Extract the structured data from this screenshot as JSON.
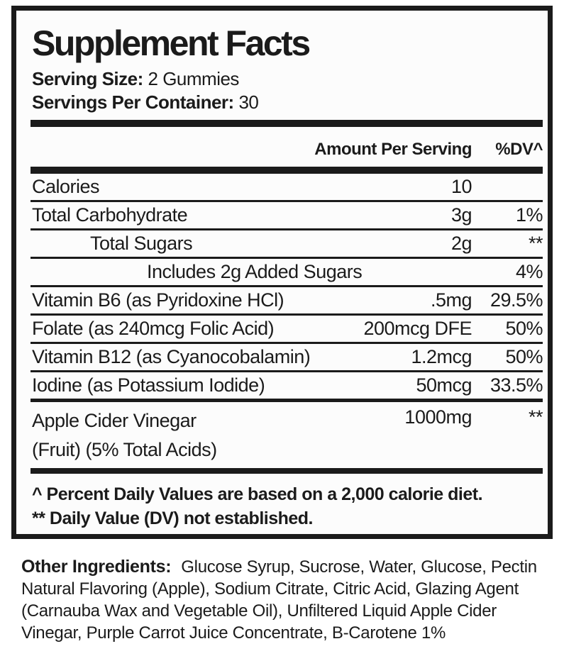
{
  "panel": {
    "title": "Supplement Facts",
    "serving_size_label": "Serving Size:",
    "serving_size_value": "2 Gummies",
    "servings_per_container_label": "Servings Per Container:",
    "servings_per_container_value": "30",
    "header": {
      "amount": "Amount Per Serving",
      "dv": "%DV^"
    },
    "rows": [
      {
        "name": "Calories",
        "amount": "10",
        "dv": ""
      },
      {
        "name": "Total Carbohydrate",
        "amount": "3g",
        "dv": "1%"
      },
      {
        "name": "Total Sugars",
        "amount": "2g",
        "dv": "**"
      },
      {
        "name": "Includes 2g Added Sugars",
        "amount": "",
        "dv": "4%"
      },
      {
        "name": "Vitamin B6 (as Pyridoxine HCl)",
        "amount": ".5mg",
        "dv": "29.5%"
      },
      {
        "name": "Folate (as 240mcg Folic Acid)",
        "amount": "200mcg DFE",
        "dv": "50%"
      },
      {
        "name": "Vitamin B12 (as Cyanocobalamin)",
        "amount": "1.2mcg",
        "dv": "50%"
      },
      {
        "name": "Iodine (as Potassium Iodide)",
        "amount": "50mcg",
        "dv": "33.5%"
      },
      {
        "name": "Apple Cider Vinegar",
        "name_line2": "(Fruit) (5% Total Acids)",
        "amount": "1000mg",
        "dv": "**"
      }
    ],
    "footnotes": [
      "^ Percent Daily Values are based on a 2,000 calorie diet.",
      "** Daily Value (DV) not established."
    ]
  },
  "other_ingredients": {
    "label": "Other Ingredients:",
    "text": "Glucose Syrup, Sucrose, Water, Glucose, Pectin Natural Flavoring (Apple), Sodium Citrate, Citric Acid, Glazing Agent (Carnauba Wax and Vegetable Oil), Unfiltered Liquid Apple Cider Vinegar, Purple Carrot Juice Concentrate, B-Carotene 1%"
  },
  "colors": {
    "text": "#1b1b1b",
    "panel_background": "#fcfcfc",
    "page_background": "#ffffff",
    "rule": "#1b1b1b"
  }
}
